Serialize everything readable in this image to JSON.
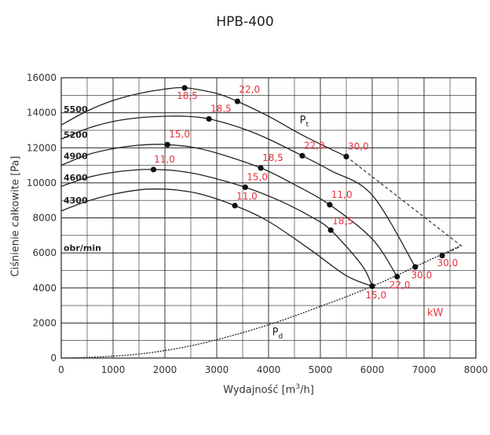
{
  "chart_data": {
    "type": "line",
    "title": "HPB-400",
    "xlabel_main": "Wydajność [m",
    "xlabel_sup": "3",
    "xlabel_end": "/h]",
    "ylabel": "Ciśnienie całkowite [Pa]",
    "xlim": [
      0,
      8000
    ],
    "ylim": [
      0,
      16000
    ],
    "xticks": [
      0,
      1000,
      2000,
      3000,
      4000,
      5000,
      6000,
      7000,
      8000
    ],
    "yticks": [
      0,
      2000,
      4000,
      6000,
      8000,
      10000,
      12000,
      14000,
      16000
    ],
    "grid": true,
    "speed_unit_label": "obr/min",
    "pt_label_main": "P",
    "pt_label_sub": "t",
    "pd_label_main": "P",
    "pd_label_sub": "d",
    "power_unit_label": "kW",
    "colors": {
      "curve": "#222222",
      "power_label": "#e8323c",
      "grid": "#222222"
    },
    "series": [
      {
        "name": "5500",
        "label_y": 14200,
        "x": [
          0,
          500,
          1000,
          1500,
          2000,
          2400,
          3000,
          3400,
          4000,
          4700,
          5500
        ],
        "y": [
          13300,
          14100,
          14700,
          15100,
          15350,
          15420,
          15100,
          14650,
          13800,
          12650,
          11500
        ]
      },
      {
        "name": "5200",
        "label_y": 12750,
        "x": [
          0,
          500,
          1000,
          1500,
          2000,
          2400,
          2850,
          3500,
          4000,
          4650,
          5200,
          6000,
          6830
        ],
        "y": [
          12500,
          13100,
          13500,
          13720,
          13800,
          13800,
          13650,
          13100,
          12500,
          11550,
          10700,
          9300,
          5200
        ]
      },
      {
        "name": "4900",
        "label_y": 11550,
        "x": [
          0,
          500,
          1000,
          1500,
          1900,
          2050,
          2500,
          3000,
          3850,
          4500,
          5180,
          6000,
          6480
        ],
        "y": [
          11000,
          11600,
          11950,
          12150,
          12200,
          12180,
          12050,
          11700,
          10850,
          9900,
          8750,
          6800,
          4650
        ]
      },
      {
        "name": "4600",
        "label_y": 10300,
        "x": [
          0,
          500,
          1000,
          1500,
          1800,
          2200,
          2700,
          3550,
          4200,
          4800,
          5200,
          5800,
          6000
        ],
        "y": [
          9800,
          10300,
          10600,
          10750,
          10760,
          10700,
          10450,
          9750,
          9000,
          8100,
          7300,
          5300,
          4100
        ]
      },
      {
        "name": "4300",
        "label_y": 9000,
        "x": [
          0,
          500,
          1000,
          1500,
          1800,
          2200,
          2700,
          3350,
          4000,
          4800,
          5500,
          6000
        ],
        "y": [
          8400,
          8950,
          9350,
          9600,
          9650,
          9600,
          9350,
          8700,
          7800,
          6200,
          4700,
          4100
        ]
      },
      {
        "name": "Pd",
        "x": [
          0,
          500,
          1000,
          1500,
          2000,
          2500,
          3000,
          3500,
          4000,
          4500,
          5000,
          5500,
          6000,
          6500,
          7000,
          7700
        ],
        "y": [
          0,
          35,
          110,
          230,
          430,
          700,
          1050,
          1450,
          1900,
          2400,
          2950,
          3500,
          4100,
          4750,
          5450,
          6400
        ]
      }
    ],
    "points": [
      {
        "x": 2380,
        "y": 15420,
        "label": "18,5",
        "lx": 2230,
        "ly": 14800
      },
      {
        "x": 3400,
        "y": 14650,
        "label": "22,0",
        "lx": 3430,
        "ly": 15150
      },
      {
        "x": 2850,
        "y": 13650,
        "label": "18,5",
        "lx": 2880,
        "ly": 14050
      },
      {
        "x": 4650,
        "y": 11550,
        "label": "22,0",
        "lx": 4680,
        "ly": 11950
      },
      {
        "x": 5500,
        "y": 11500,
        "label": "30,0",
        "lx": 5530,
        "ly": 11900
      },
      {
        "x": 2050,
        "y": 12180,
        "label": "15,0",
        "lx": 2080,
        "ly": 12600
      },
      {
        "x": 3850,
        "y": 10850,
        "label": "18,5",
        "lx": 3880,
        "ly": 11250
      },
      {
        "x": 1780,
        "y": 10760,
        "label": "11,0",
        "lx": 1790,
        "ly": 11150
      },
      {
        "x": 3550,
        "y": 9750,
        "label": "15,0",
        "lx": 3580,
        "ly": 10150
      },
      {
        "x": 5180,
        "y": 8750,
        "label": "11,0",
        "lx": 5210,
        "ly": 9150
      },
      {
        "x": 3350,
        "y": 8700,
        "label": "11,0",
        "lx": 3380,
        "ly": 9050
      },
      {
        "x": 5200,
        "y": 7300,
        "label": "18,5",
        "lx": 5230,
        "ly": 7650
      },
      {
        "x": 7350,
        "y": 5850,
        "label": "30,0",
        "lx": 7250,
        "ly": 5250
      },
      {
        "x": 6830,
        "y": 5200,
        "label": "30,0",
        "lx": 6750,
        "ly": 4550
      },
      {
        "x": 6480,
        "y": 4650,
        "label": "22,0",
        "lx": 6330,
        "ly": 4000
      },
      {
        "x": 6000,
        "y": 4100,
        "label": "15,0",
        "lx": 5870,
        "ly": 3400
      }
    ],
    "limit_line": [
      [
        5500,
        11500
      ],
      [
        7720,
        6400
      ],
      [
        7350,
        5850
      ]
    ]
  }
}
